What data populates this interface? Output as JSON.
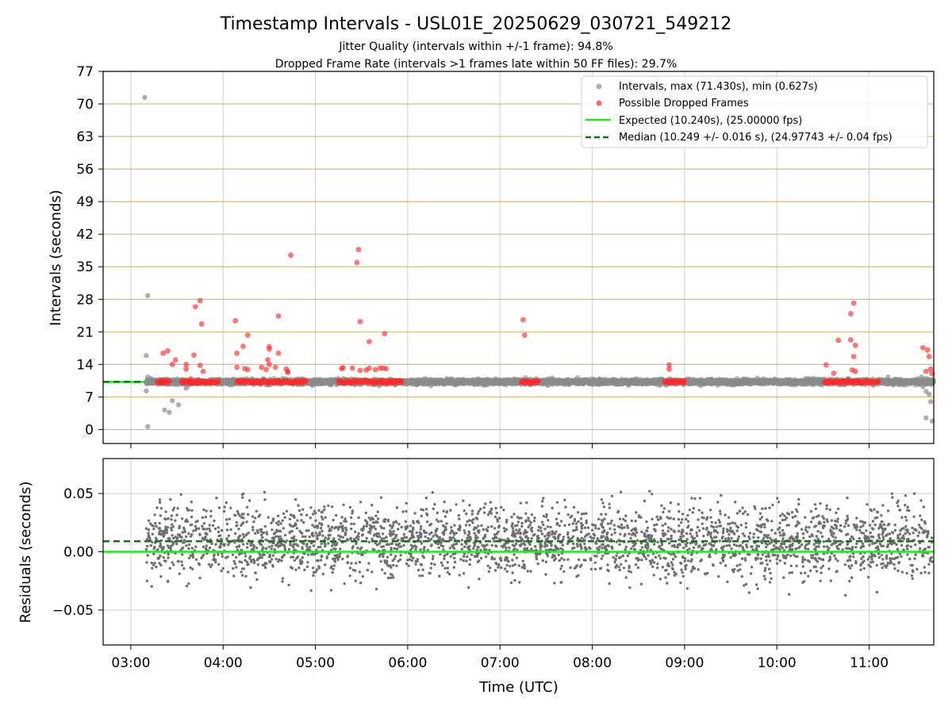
{
  "figure": {
    "title": "Timestamp Intervals - USL01E_20250629_030721_549212",
    "subtitle_1": "Jitter Quality (intervals within +/-1 frame): 94.8%",
    "subtitle_2": "Dropped Frame Rate (intervals >1 frames late within 50 FF files): 29.7%"
  },
  "colors": {
    "intervals": "#8c8c8c",
    "dropped": "#ff2a2a",
    "expected": "#1aeb1a",
    "median": "#0b7a0b",
    "hgrid_top": "#d2bd7a",
    "grid": "#cfcfcf",
    "residual_points": "#6f6f6f"
  },
  "chart_data": [
    {
      "type": "scatter",
      "panel": "intervals",
      "ylabel": "Intervals (seconds)",
      "ylim": [
        -3,
        77
      ],
      "xlim": [
        "02:42",
        "11:42"
      ],
      "yticks": [
        "0",
        "7",
        "14",
        "21",
        "28",
        "35",
        "42",
        "49",
        "56",
        "63",
        "70",
        "77"
      ],
      "grid": true,
      "legend_position": "top-right",
      "legend": [
        "Intervals, max (71.430s), min (0.627s)",
        "Possible Dropped Frames",
        "Expected (10.240s), (25.00000 fps)",
        "Median (10.249 +/- 0.016 s), (24.97743 +/- 0.04 fps)"
      ],
      "expected_value": 10.24,
      "median_value": 10.249,
      "interval_outliers": [
        [
          "03:09",
          71.4
        ],
        [
          "03:10",
          15.9
        ],
        [
          "03:11",
          28.8
        ],
        [
          "03:11",
          11.3
        ],
        [
          "03:10",
          8.3
        ],
        [
          "03:11",
          0.63
        ],
        [
          "03:22",
          4.2
        ],
        [
          "03:25",
          3.7
        ],
        [
          "03:27",
          6.2
        ],
        [
          "03:31",
          5.3
        ],
        [
          "03:36",
          8.9
        ],
        [
          "04:36",
          9.8
        ],
        [
          "11:34",
          11.3
        ],
        [
          "11:35",
          9.2
        ],
        [
          "11:37",
          8.2
        ],
        [
          "11:37",
          2.5
        ],
        [
          "11:39",
          7.6
        ],
        [
          "11:40",
          6.0
        ],
        [
          "11:41",
          1.8
        ],
        [
          "11:38",
          10.0
        ]
      ],
      "dropped_clusters": [
        [
          "03:17",
          "03:25"
        ],
        [
          "03:33",
          "03:57"
        ],
        [
          "04:09",
          "04:54"
        ],
        [
          "05:15",
          "05:56"
        ],
        [
          "07:14",
          "07:25"
        ],
        [
          "08:47",
          "09:00"
        ],
        [
          "10:31",
          "11:06"
        ]
      ],
      "dropped_outliers": [
        [
          "03:21",
          16.4
        ],
        [
          "03:24",
          16.9
        ],
        [
          "03:27",
          14.0
        ],
        [
          "03:29",
          15.0
        ],
        [
          "03:36",
          14.0
        ],
        [
          "03:36",
          13.0
        ],
        [
          "03:39",
          10.9
        ],
        [
          "03:41",
          16.0
        ],
        [
          "03:42",
          26.4
        ],
        [
          "03:45",
          27.7
        ],
        [
          "03:46",
          22.7
        ],
        [
          "03:45",
          13.8
        ],
        [
          "03:47",
          12.5
        ],
        [
          "04:08",
          23.4
        ],
        [
          "04:09",
          16.4
        ],
        [
          "04:09",
          13.4
        ],
        [
          "04:13",
          17.9
        ],
        [
          "04:14",
          13.1
        ],
        [
          "04:16",
          20.3
        ],
        [
          "04:16",
          12.9
        ],
        [
          "04:25",
          13.4
        ],
        [
          "04:28",
          12.9
        ],
        [
          "04:29",
          15.0
        ],
        [
          "04:30",
          17.8
        ],
        [
          "04:30",
          17.3
        ],
        [
          "04:30",
          14.0
        ],
        [
          "04:34",
          13.4
        ],
        [
          "04:36",
          16.4
        ],
        [
          "04:36",
          24.4
        ],
        [
          "04:41",
          13.0
        ],
        [
          "04:42",
          12.5
        ],
        [
          "04:42",
          12.3
        ],
        [
          "04:44",
          37.5
        ],
        [
          "05:17",
          13.1
        ],
        [
          "05:18",
          13.3
        ],
        [
          "05:24",
          13.2
        ],
        [
          "05:27",
          35.9
        ],
        [
          "05:28",
          38.7
        ],
        [
          "05:29",
          23.2
        ],
        [
          "05:29",
          12.7
        ],
        [
          "05:33",
          12.8
        ],
        [
          "05:35",
          13.2
        ],
        [
          "05:35",
          18.9
        ],
        [
          "05:39",
          12.9
        ],
        [
          "05:42",
          13.2
        ],
        [
          "05:44",
          13.2
        ],
        [
          "05:45",
          20.6
        ],
        [
          "05:46",
          13.1
        ],
        [
          "07:15",
          23.6
        ],
        [
          "07:16",
          20.3
        ],
        [
          "08:50",
          13.9
        ],
        [
          "08:50",
          13.0
        ],
        [
          "10:32",
          13.9
        ],
        [
          "10:37",
          12.1
        ],
        [
          "10:40",
          19.2
        ],
        [
          "10:46",
          10.6
        ],
        [
          "10:48",
          19.3
        ],
        [
          "10:48",
          24.9
        ],
        [
          "10:50",
          27.2
        ],
        [
          "10:50",
          15.7
        ],
        [
          "10:51",
          18.1
        ],
        [
          "10:49",
          12.8
        ],
        [
          "10:51",
          12.5
        ],
        [
          "11:35",
          17.6
        ],
        [
          "11:38",
          17.1
        ],
        [
          "11:39",
          15.7
        ],
        [
          "11:37",
          12.5
        ],
        [
          "11:40",
          13.0
        ],
        [
          "11:41",
          12.0
        ]
      ]
    },
    {
      "type": "scatter",
      "panel": "residuals",
      "xlabel": "Time (UTC)",
      "ylabel": "Residuals (seconds)",
      "ylim": [
        -0.08,
        0.08
      ],
      "yticks": [
        "−0.05",
        "0.00",
        "0.05"
      ],
      "xticks": [
        "03:00",
        "04:00",
        "05:00",
        "06:00",
        "07:00",
        "08:00",
        "09:00",
        "10:00",
        "11:00"
      ],
      "expected_value": 0.0,
      "median_value": 0.009,
      "residual_time_range": [
        "03:10",
        "11:41"
      ],
      "residual_mean": 0.009,
      "residual_spread": 0.015,
      "residual_bounds": [
        -0.042,
        0.052
      ],
      "residual_count": 2980
    }
  ]
}
